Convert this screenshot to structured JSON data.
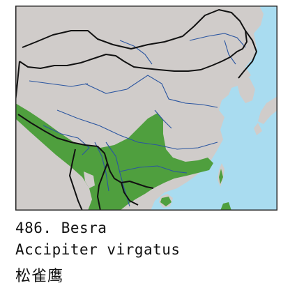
{
  "caption": {
    "number": "486.",
    "common_name": "Besra",
    "scientific_name": "Accipiter virgatus",
    "chinese_name": "松雀鹰"
  },
  "map": {
    "legend": "",
    "colors": {
      "land": "#d0ccca",
      "water": "#a9dcf0",
      "range": "#4f9f3e",
      "border": "#111111",
      "river": "#2a55a0",
      "frame": "#222222"
    }
  }
}
